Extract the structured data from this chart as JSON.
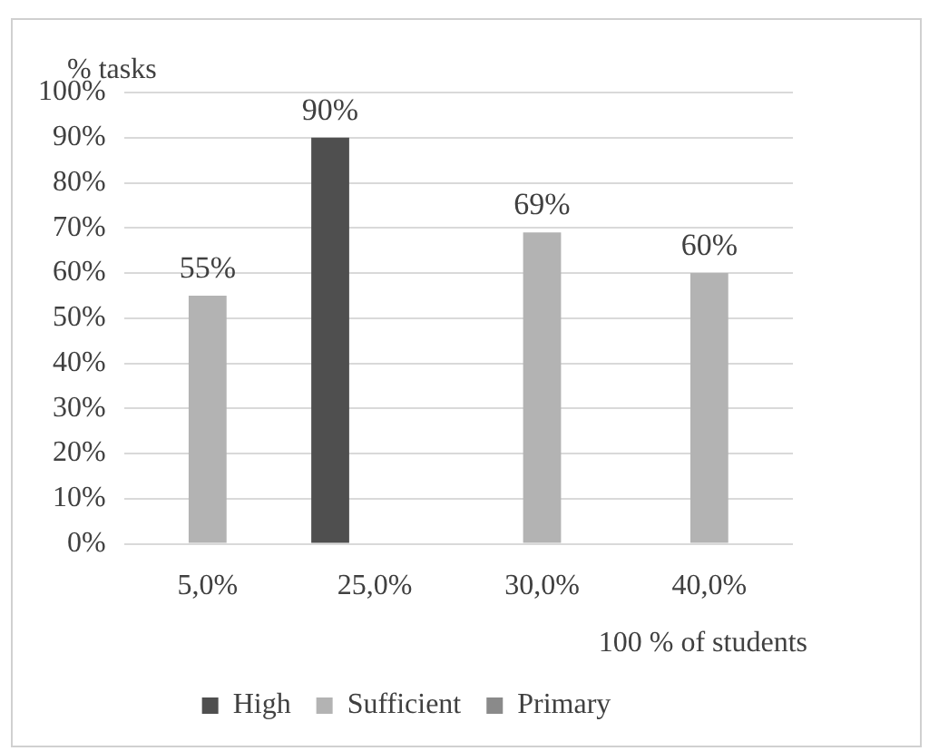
{
  "chart_data": {
    "type": "bar",
    "xlabel": "100 % of students",
    "ylabel": "% tasks",
    "categories": [
      "5,0%",
      "25,0%",
      "30,0%",
      "40,0%"
    ],
    "series": [
      {
        "name": "High",
        "color": "#4f4f4f",
        "values": [
          null,
          90,
          null,
          null
        ],
        "value_labels": [
          null,
          "90%",
          null,
          null
        ]
      },
      {
        "name": "Sufficient",
        "color": "#b3b3b3",
        "values": [
          55,
          null,
          69,
          60
        ],
        "value_labels": [
          "55%",
          null,
          "69%",
          "60%"
        ]
      },
      {
        "name": "Primary",
        "color": "#8a8a8a",
        "values": [
          null,
          null,
          null,
          null
        ],
        "value_labels": [
          null,
          null,
          null,
          null
        ]
      }
    ],
    "ylim": [
      0,
      100
    ],
    "yticks": [
      {
        "value": 0,
        "label": "0%"
      },
      {
        "value": 10,
        "label": "10%"
      },
      {
        "value": 20,
        "label": "20%"
      },
      {
        "value": 30,
        "label": "30%"
      },
      {
        "value": 40,
        "label": "40%"
      },
      {
        "value": 50,
        "label": "50%"
      },
      {
        "value": 60,
        "label": "60%"
      },
      {
        "value": 70,
        "label": "70%"
      },
      {
        "value": 80,
        "label": "80%"
      },
      {
        "value": 90,
        "label": "90%"
      },
      {
        "value": 100,
        "label": "100%"
      }
    ],
    "grid": "y",
    "legend": "bottom"
  }
}
